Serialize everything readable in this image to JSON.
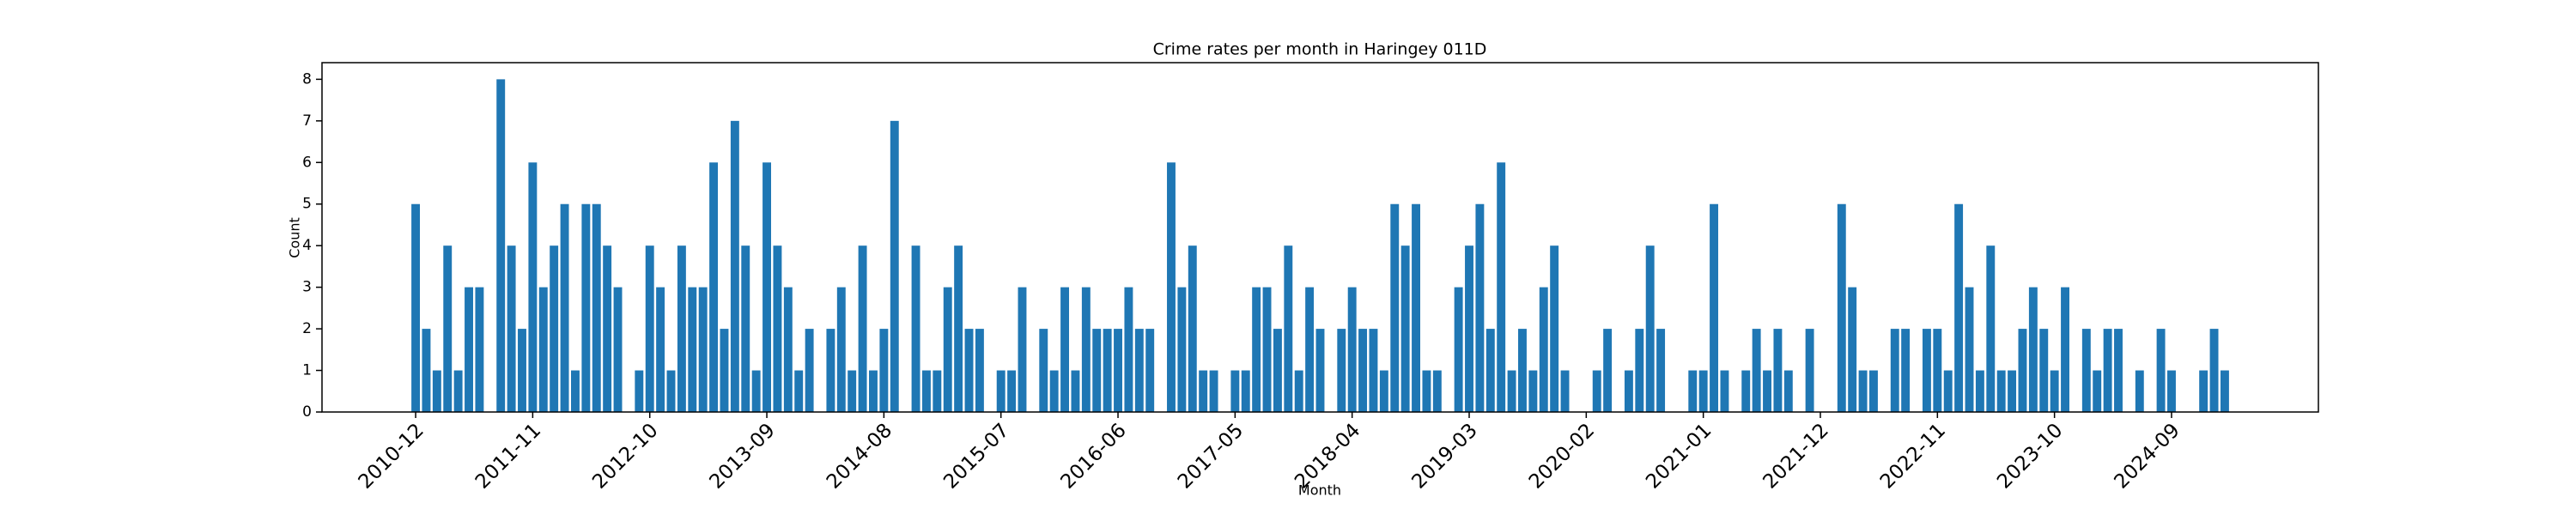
{
  "chart_data": {
    "type": "bar",
    "title": "Crime rates per month in Haringey 011D",
    "x_label": "Month",
    "y_label": "Count",
    "color": "#1f77b4",
    "categories": [
      "2010-12",
      null,
      null,
      null,
      null,
      null,
      null,
      null,
      null,
      null,
      null,
      "2011-11",
      null,
      null,
      null,
      null,
      null,
      null,
      null,
      null,
      null,
      null,
      "2012-10",
      null,
      null,
      null,
      null,
      null,
      null,
      null,
      null,
      null,
      null,
      "2013-09",
      null,
      null,
      null,
      null,
      null,
      null,
      null,
      null,
      null,
      null,
      "2014-08",
      null,
      null,
      null,
      null,
      null,
      null,
      null,
      null,
      null,
      null,
      "2015-07",
      null,
      null,
      null,
      null,
      null,
      null,
      null,
      null,
      null,
      null,
      "2016-06",
      null,
      null,
      null,
      null,
      null,
      null,
      null,
      null,
      null,
      null,
      "2017-05",
      null,
      null,
      null,
      null,
      null,
      null,
      null,
      null,
      null,
      null,
      "2018-04",
      null,
      null,
      null,
      null,
      null,
      null,
      null,
      null,
      null,
      null,
      "2019-03",
      null,
      null,
      null,
      null,
      null,
      null,
      null,
      null,
      null,
      null,
      "2020-02",
      null,
      null,
      null,
      null,
      null,
      null,
      null,
      null,
      null,
      null,
      "2021-01",
      null,
      null,
      null,
      null,
      null,
      null,
      null,
      null,
      null,
      null,
      "2021-12",
      null,
      null,
      null,
      null,
      null,
      null,
      null,
      null,
      null,
      null,
      "2022-11",
      null,
      null,
      null,
      null,
      null,
      null,
      null,
      null,
      null,
      null,
      "2023-10",
      null,
      null,
      null,
      null,
      null,
      null,
      null,
      null,
      null,
      null,
      "2024-09",
      null,
      null,
      null,
      null,
      null
    ],
    "values": [
      5,
      2,
      1,
      4,
      1,
      3,
      3,
      0,
      8,
      4,
      2,
      6,
      3,
      4,
      5,
      1,
      5,
      5,
      4,
      3,
      0,
      1,
      4,
      3,
      1,
      4,
      3,
      3,
      6,
      2,
      7,
      4,
      1,
      6,
      4,
      3,
      1,
      2,
      0,
      2,
      3,
      1,
      4,
      1,
      2,
      7,
      0,
      4,
      1,
      1,
      3,
      4,
      2,
      2,
      0,
      1,
      1,
      3,
      0,
      2,
      1,
      3,
      1,
      3,
      2,
      2,
      2,
      3,
      2,
      2,
      0,
      6,
      3,
      4,
      1,
      1,
      0,
      1,
      1,
      3,
      3,
      2,
      4,
      1,
      3,
      2,
      0,
      2,
      3,
      2,
      2,
      1,
      5,
      4,
      5,
      1,
      1,
      0,
      3,
      4,
      5,
      2,
      6,
      1,
      2,
      1,
      3,
      4,
      1,
      0,
      0,
      1,
      2,
      0,
      1,
      2,
      4,
      2,
      0,
      0,
      1,
      1,
      5,
      1,
      0,
      1,
      2,
      1,
      2,
      1,
      0,
      2,
      0,
      0,
      5,
      3,
      1,
      1,
      0,
      2,
      2,
      0,
      2,
      2,
      1,
      5,
      3,
      1,
      4,
      1,
      1,
      2,
      3,
      2,
      1,
      3,
      0,
      2,
      1,
      2,
      2,
      0,
      1,
      0,
      2,
      1,
      0,
      0,
      1,
      2,
      1
    ],
    "ylim": [
      0,
      8.4
    ],
    "yticks": [
      0,
      1,
      2,
      3,
      4,
      5,
      6,
      7,
      8
    ]
  }
}
